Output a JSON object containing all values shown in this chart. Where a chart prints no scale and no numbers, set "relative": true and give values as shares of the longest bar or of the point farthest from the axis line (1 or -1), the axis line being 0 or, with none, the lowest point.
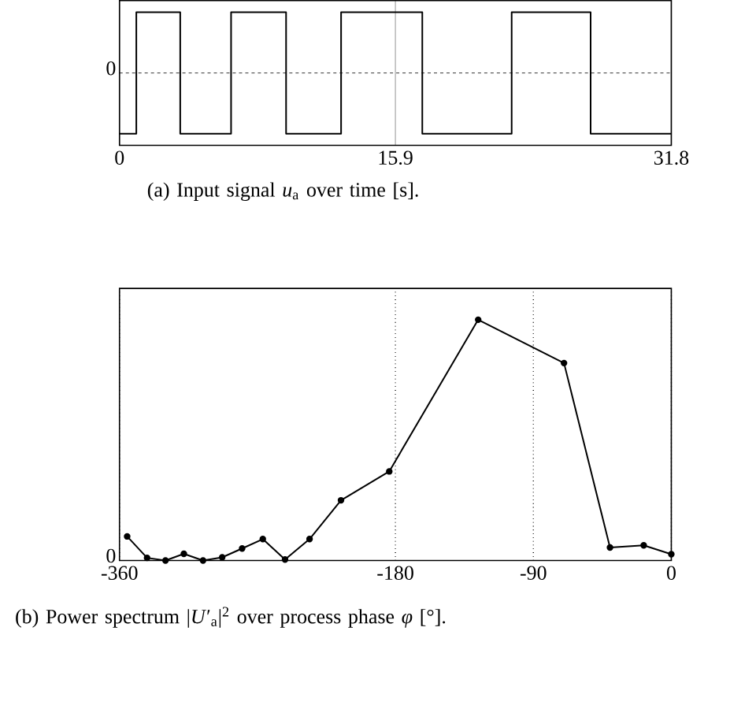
{
  "chart_data": [
    {
      "type": "step",
      "title": "(a) Input signal *u*$_{a}$ over time [s].",
      "relative": true,
      "x": [
        0,
        0.97,
        3.5,
        6.43,
        9.6,
        12.77,
        17.45,
        22.6,
        27.15,
        31.8
      ],
      "values": [
        -1,
        1,
        -1,
        1,
        -1,
        1,
        -1,
        1,
        -1,
        -1
      ],
      "color": "#000000",
      "xlim": [
        0,
        31.8
      ],
      "xticks": [
        0,
        15.9,
        31.8
      ],
      "ref_lines": [
        {
          "axis": "y",
          "value": 0,
          "label": "0",
          "line_style": "dashed"
        }
      ],
      "grid": "x",
      "marker": "none",
      "line_style": "solid"
    },
    {
      "type": "line",
      "title": "(b) Power spectrum |*U*′$_{a}$|$^{2}$ over process phase *φ* [°].",
      "relative": true,
      "x": [
        -355,
        -342,
        -330,
        -318,
        -305.5,
        -293,
        -280,
        -266.5,
        -252,
        -236,
        -215.5,
        -184,
        -126,
        -70,
        -40,
        -18,
        0
      ],
      "values": [
        0.1,
        0.011,
        0,
        0.028,
        0,
        0.013,
        0.05,
        0.089,
        0.004,
        0.089,
        0.25,
        0.37,
        1,
        0.82,
        0.054,
        0.063,
        0.026
      ],
      "color": "#000000",
      "xlim": [
        -360,
        0
      ],
      "xticks": [
        -360,
        -180,
        -90,
        0
      ],
      "annotations": [
        "0"
      ],
      "grid": "x",
      "marker": "circle",
      "line_style": "solid"
    }
  ]
}
